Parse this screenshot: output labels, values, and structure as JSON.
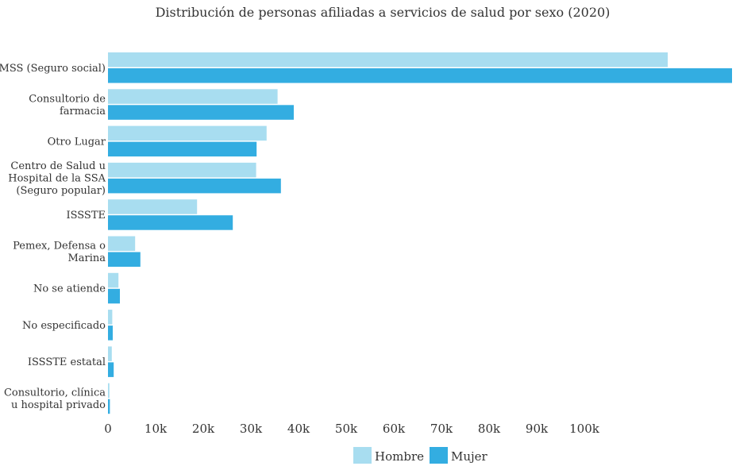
{
  "chart_data": {
    "type": "bar",
    "orientation": "horizontal",
    "title": "Distribución de personas afiliadas a servicios de salud por sexo (2020)",
    "xlabel": "",
    "ylabel": "",
    "xlim": [
      0,
      131000
    ],
    "ticks": [
      0,
      10000,
      20000,
      30000,
      40000,
      50000,
      60000,
      70000,
      80000,
      90000,
      100000
    ],
    "tick_labels": [
      "0",
      "10k",
      "20k",
      "30k",
      "40k",
      "50k",
      "60k",
      "70k",
      "80k",
      "90k",
      "100k"
    ],
    "grid": false,
    "legend_position": "bottom",
    "categories": [
      [
        "IMSS (Seguro social)"
      ],
      [
        "Consultorio de",
        "farmacia"
      ],
      [
        "Otro Lugar"
      ],
      [
        "Centro de Salud u",
        "Hospital de la SSA",
        "(Seguro popular)"
      ],
      [
        "ISSSTE"
      ],
      [
        "Pemex, Defensa o",
        "Marina"
      ],
      [
        "No se atiende"
      ],
      [
        "No especificado"
      ],
      [
        "ISSSTE estatal"
      ],
      [
        "Consultorio, clínica",
        "u hospital privado"
      ]
    ],
    "series": [
      {
        "name": "Hombre",
        "color": "#a8ddf0",
        "values": [
          117500,
          35600,
          33300,
          31100,
          18700,
          5700,
          2200,
          900,
          800,
          300
        ]
      },
      {
        "name": "Mujer",
        "color": "#33ade1",
        "values": [
          131000,
          39000,
          31200,
          36300,
          26200,
          6800,
          2500,
          1000,
          1200,
          400
        ]
      }
    ]
  }
}
